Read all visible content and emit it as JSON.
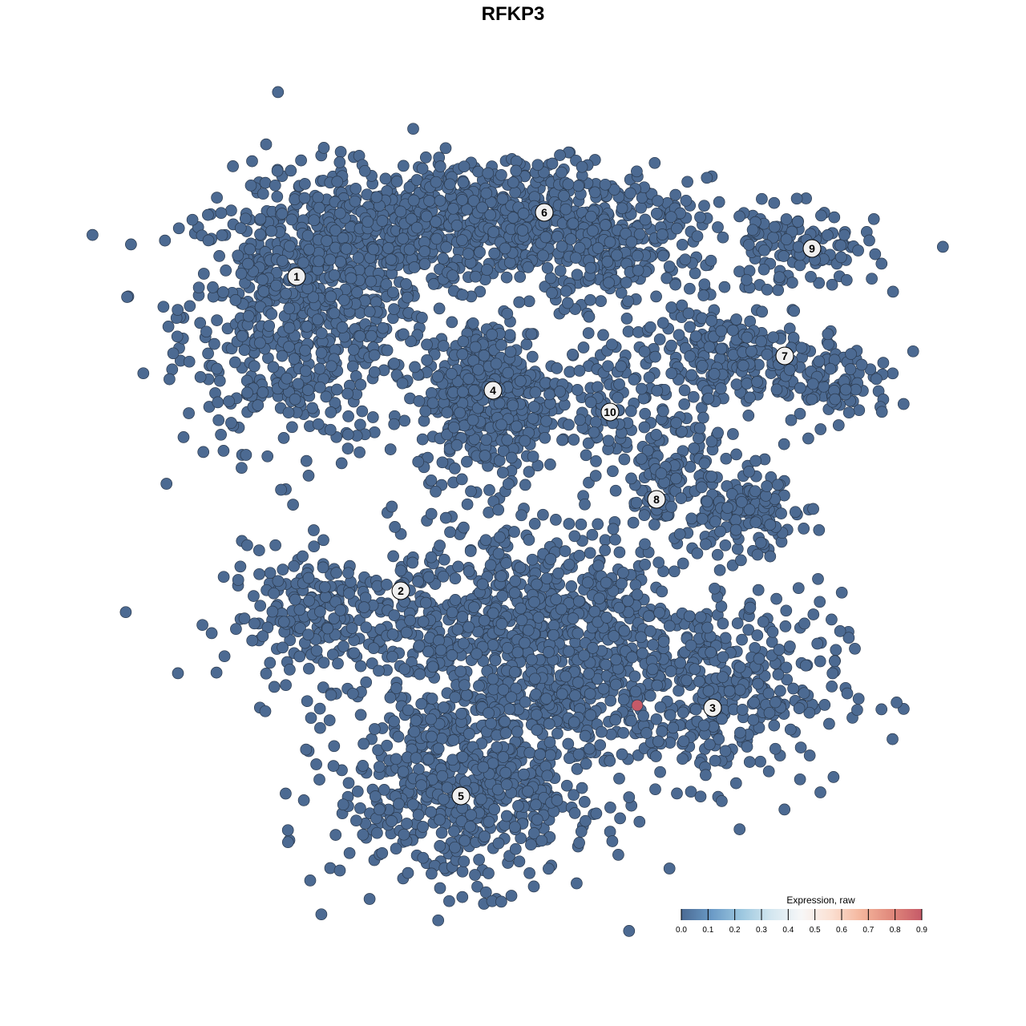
{
  "chart_data": {
    "type": "scatter",
    "title": "RFKP3",
    "xlabel": "",
    "ylabel": "",
    "xlim": [
      -32,
      32
    ],
    "ylim": [
      -32,
      32
    ],
    "grid": false,
    "axes_visible": false,
    "point_color_default": "#4c6a92",
    "point_stroke": "#2b3a4e",
    "clusters": [
      {
        "label": "1",
        "center": [
          -13.5,
          14.75
        ],
        "blobs": [
          {
            "center": [
              -13,
              12.5
            ],
            "sd": [
              3.8,
              4.2
            ],
            "n": 700
          },
          {
            "center": [
              -8,
              17.5
            ],
            "sd": [
              4,
              2
            ],
            "n": 300
          }
        ]
      },
      {
        "label": "2",
        "center": [
          -7,
          -4.85
        ],
        "blobs": [
          {
            "center": [
              -11,
              -6.5
            ],
            "sd": [
              3.5,
              2
            ],
            "n": 260
          }
        ]
      },
      {
        "label": "3",
        "center": [
          12.45,
          -12.15
        ],
        "blobs": [
          {
            "center": [
              12.5,
              -11
            ],
            "sd": [
              4,
              3
            ],
            "n": 380
          }
        ]
      },
      {
        "label": "4",
        "center": [
          -1.25,
          7.65
        ],
        "blobs": [
          {
            "center": [
              -1.5,
              7.3
            ],
            "sd": [
              2.2,
              2.5
            ],
            "n": 420
          }
        ]
      },
      {
        "label": "5",
        "center": [
          -3.25,
          -17.65
        ],
        "blobs": [
          {
            "center": [
              1.5,
              -8
            ],
            "sd": [
              4.5,
              3.8
            ],
            "n": 900
          },
          {
            "center": [
              -3,
              -17
            ],
            "sd": [
              4,
              3
            ],
            "n": 600
          }
        ]
      },
      {
        "label": "6",
        "center": [
          1.95,
          18.75
        ],
        "blobs": [
          {
            "center": [
              0,
              18.5
            ],
            "sd": [
              5,
              1.8
            ],
            "n": 520
          },
          {
            "center": [
              6,
              16
            ],
            "sd": [
              3,
              2
            ],
            "n": 200
          }
        ]
      },
      {
        "label": "7",
        "center": [
          16.95,
          9.8
        ],
        "blobs": [
          {
            "center": [
              13.5,
              10
            ],
            "sd": [
              3,
              1.5
            ],
            "n": 200
          },
          {
            "center": [
              20,
              8
            ],
            "sd": [
              2,
              1.2
            ],
            "n": 110
          }
        ]
      },
      {
        "label": "8",
        "center": [
          8.95,
          0.85
        ],
        "blobs": [
          {
            "center": [
              10,
              2.5
            ],
            "sd": [
              1.6,
              2.5
            ],
            "n": 150
          },
          {
            "center": [
              14.5,
              0
            ],
            "sd": [
              2,
              1.3
            ],
            "n": 130
          }
        ]
      },
      {
        "label": "9",
        "center": [
          18.65,
          16.5
        ],
        "blobs": [
          {
            "center": [
              17.5,
              16.5
            ],
            "sd": [
              2.6,
              1.3
            ],
            "n": 130
          }
        ]
      },
      {
        "label": "10",
        "center": [
          6.05,
          6.3
        ],
        "blobs": [
          {
            "center": [
              6,
              7
            ],
            "sd": [
              1.5,
              2
            ],
            "n": 80
          }
        ]
      }
    ],
    "highlighted_points": [
      {
        "x": 7.75,
        "y": -12,
        "value": 0.9
      }
    ],
    "default_value": 0.0,
    "legend": {
      "title": "Expression, raw",
      "placement": "bottom-right",
      "ticks": [
        "0.0",
        "0.1",
        "0.2",
        "0.3",
        "0.4",
        "0.5",
        "0.6",
        "0.7",
        "0.8",
        "0.9"
      ],
      "range": [
        0,
        0.9
      ],
      "colors": [
        "#4a6a93",
        "#6a9ac6",
        "#9cc7df",
        "#d4e7f0",
        "#f7f7f7",
        "#fbe0d2",
        "#f4b59c",
        "#e0887b",
        "#c65a68"
      ]
    }
  }
}
